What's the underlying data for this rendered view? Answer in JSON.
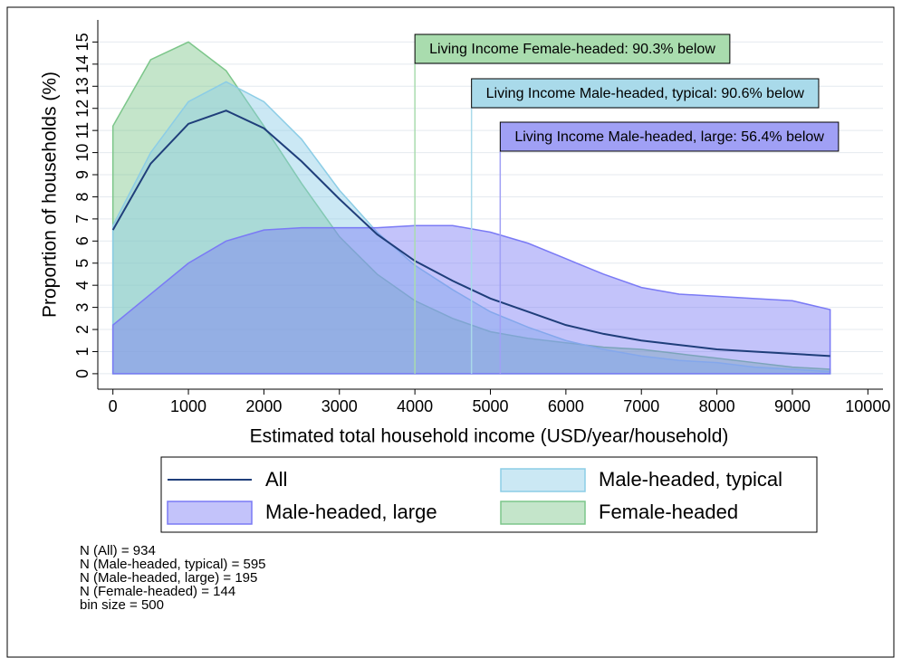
{
  "chart_data": {
    "type": "area",
    "xlabel": "Estimated total household income (USD/year/household)",
    "ylabel": "Proportion of households (%)",
    "x": [
      0,
      500,
      1000,
      1500,
      2000,
      2500,
      3000,
      3500,
      4000,
      4500,
      5000,
      5500,
      6000,
      6500,
      7000,
      7500,
      8000,
      8500,
      9000,
      9500
    ],
    "series": [
      {
        "name": "Female-headed",
        "kind": "area",
        "color": "#7cc68a",
        "values": [
          11.2,
          14.2,
          15.0,
          13.7,
          11.2,
          8.6,
          6.2,
          4.5,
          3.3,
          2.5,
          1.9,
          1.6,
          1.4,
          1.2,
          1.1,
          0.9,
          0.7,
          0.5,
          0.3,
          0.2
        ]
      },
      {
        "name": "Male-headed, typical",
        "kind": "area",
        "color": "#8ccde6",
        "values": [
          6.7,
          10.0,
          12.3,
          13.2,
          12.3,
          10.6,
          8.3,
          6.4,
          4.9,
          3.8,
          2.8,
          2.1,
          1.5,
          1.1,
          0.8,
          0.6,
          0.5,
          0.3,
          0.2,
          0.1
        ]
      },
      {
        "name": "Male-headed, large",
        "kind": "area",
        "color": "#7a7af5",
        "values": [
          2.2,
          3.6,
          5.0,
          6.0,
          6.5,
          6.6,
          6.6,
          6.6,
          6.7,
          6.7,
          6.4,
          5.9,
          5.2,
          4.5,
          3.9,
          3.6,
          3.5,
          3.4,
          3.3,
          2.9
        ]
      },
      {
        "name": "All",
        "kind": "line",
        "color": "#1f3e7a",
        "values": [
          6.5,
          9.5,
          11.3,
          11.9,
          11.1,
          9.6,
          7.9,
          6.3,
          5.1,
          4.2,
          3.4,
          2.8,
          2.2,
          1.8,
          1.5,
          1.3,
          1.1,
          1.0,
          0.9,
          0.8
        ]
      }
    ],
    "legend_order": [
      3,
      1,
      2,
      0
    ],
    "annotations": [
      {
        "text": "Living Income Female-headed: 90.3% below",
        "x": 4000,
        "color": "#a9dcae"
      },
      {
        "text": "Living Income Male-headed, typical: 90.6% below",
        "x": 4750,
        "color": "#a9daea"
      },
      {
        "text": "Living Income Male-headed, large: 56.4% below",
        "x": 5130,
        "color": "#a0a0f5"
      }
    ],
    "xlim": [
      -200,
      10200
    ],
    "ylim": [
      -0.7,
      16
    ],
    "xticks": [
      0,
      1000,
      2000,
      3000,
      4000,
      5000,
      6000,
      7000,
      8000,
      9000,
      10000
    ],
    "yticks": [
      0,
      1,
      2,
      3,
      4,
      5,
      6,
      7,
      8,
      9,
      10,
      11,
      12,
      13,
      14,
      15
    ],
    "grid": true,
    "notes": [
      "N (All) = 934",
      "N (Male-headed, typical) = 595",
      "N (Male-headed, large) = 195",
      "N (Female-headed) = 144",
      "bin size = 500"
    ]
  }
}
